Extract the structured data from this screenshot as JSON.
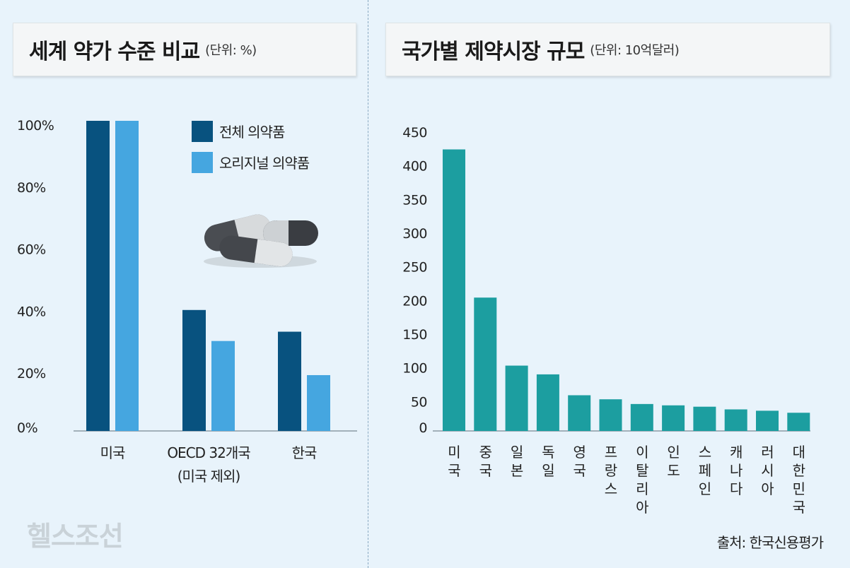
{
  "left_panel": {
    "title": "세계 약가 수준 비교",
    "unit": "(단위: %)"
  },
  "right_panel": {
    "title": "국가별 제약시장 규모",
    "unit": "(단위: 10억달러)"
  },
  "watermark": "헬스조선",
  "source": "출처: 한국신용평가",
  "colors": {
    "total": "#08527f",
    "original": "#45a6e0",
    "market": "#1c9ea0",
    "axis": "#8a9aa4"
  },
  "chart_data": [
    {
      "type": "bar",
      "title": "세계 약가 수준 비교",
      "unit": "%",
      "categories": [
        [
          "미국"
        ],
        [
          "OECD 32개국",
          "(미국 제외)"
        ],
        [
          "한국"
        ]
      ],
      "series": [
        {
          "name": "전체 의약품",
          "values": [
            100,
            39,
            32
          ]
        },
        {
          "name": "오리지널 의약품",
          "values": [
            100,
            29,
            18
          ]
        }
      ],
      "ylim": [
        0,
        100
      ],
      "yticks": [
        "0%",
        "20%",
        "40%",
        "60%",
        "80%",
        "100%"
      ],
      "legend": "top-right"
    },
    {
      "type": "bar",
      "title": "국가별 제약시장 규모",
      "unit": "10억달러",
      "categories": [
        "미국",
        "중국",
        "일본",
        "독일",
        "영국",
        "프랑스",
        "이탈리아",
        "인도",
        "스페인",
        "캐나다",
        "러시아",
        "대한민국"
      ],
      "values": [
        418,
        198,
        97,
        84,
        53,
        47,
        40,
        38,
        36,
        32,
        30,
        27
      ],
      "ylim": [
        0,
        450
      ],
      "yticks": [
        "0",
        "50",
        "100",
        "150",
        "200",
        "250",
        "300",
        "350",
        "400",
        "450"
      ]
    }
  ]
}
